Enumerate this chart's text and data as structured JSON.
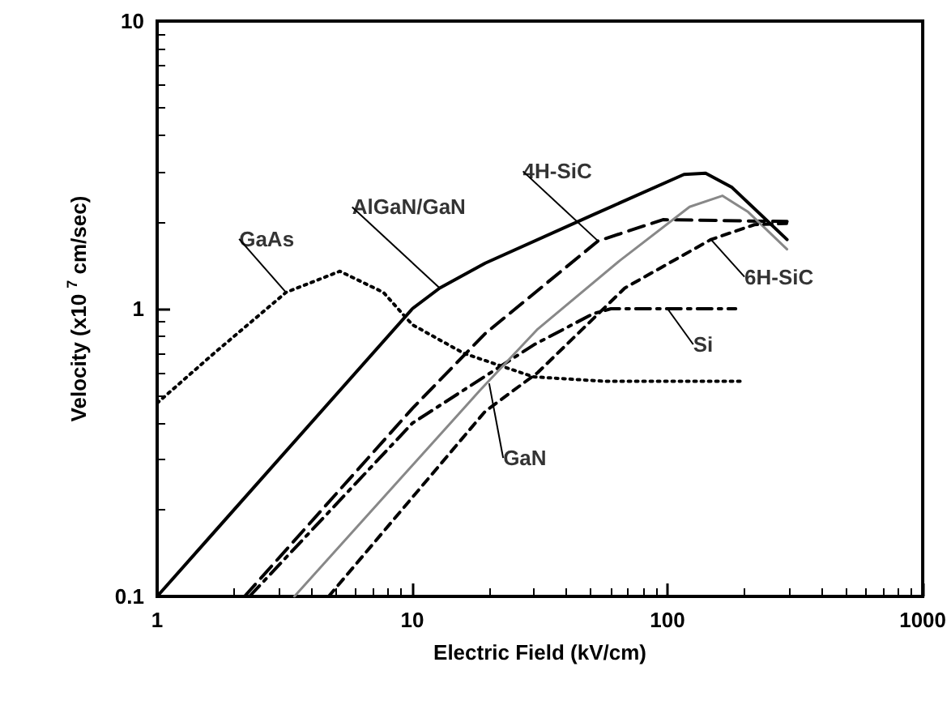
{
  "chart_data": {
    "type": "line",
    "xlabel": "Electric Field (kV/cm)",
    "ylabel": "Velocity (x10 $^{7}$ cm/sec)",
    "log": "xy",
    "grid": false,
    "marker": "none",
    "xlim": [
      1,
      1000
    ],
    "xticks": [
      1,
      10,
      100,
      1000
    ],
    "ylim": [
      0.1,
      10
    ],
    "yticks": [
      0.1,
      1,
      10
    ],
    "series": [
      {
        "color": "#000000",
        "line_style": "solid",
        "x": [
          1,
          10,
          12.8,
          19.3,
          51,
          116,
          141,
          179,
          294
        ],
        "values": [
          0.1,
          1,
          1.18,
          1.44,
          2.12,
          2.93,
          2.96,
          2.64,
          1.74
        ]
      },
      {
        "color": "#000000",
        "line_style": "dotted",
        "x": [
          1,
          1.67,
          3.2,
          5.2,
          7.7,
          10,
          15.9,
          29.8,
          56,
          198
        ],
        "values": [
          0.47,
          0.7,
          1.14,
          1.35,
          1.14,
          0.88,
          0.7,
          0.58,
          0.56,
          0.56
        ]
      },
      {
        "color": "#000000",
        "line_style": "longdash",
        "x": [
          2.2,
          10,
          19.3,
          53.4,
          96,
          294
        ],
        "values": [
          0.1,
          0.45,
          0.82,
          1.72,
          2.04,
          2.01
        ]
      },
      {
        "color": "#000000",
        "line_style": "dashdot",
        "x": [
          2.3,
          10,
          30,
          51,
          60,
          185
        ],
        "values": [
          0.1,
          0.4,
          0.75,
          0.96,
          1.0,
          1.0
        ]
      },
      {
        "color": "#888888",
        "line_style": "solid",
        "x": [
          3.45,
          18.4,
          31,
          65,
          122,
          164,
          207,
          294
        ],
        "values": [
          0.1,
          0.52,
          0.85,
          1.47,
          2.26,
          2.47,
          2.17,
          1.61
        ]
      },
      {
        "color": "#000000",
        "line_style": "dashed",
        "x": [
          4.7,
          19.3,
          31,
          68,
          148,
          219,
          294
        ],
        "values": [
          0.1,
          0.44,
          0.6,
          1.18,
          1.74,
          1.96,
          1.98
        ]
      }
    ],
    "annotations": [
      {
        "text": "GaAs",
        "x": 3.2,
        "y": 1.14
      },
      {
        "text": "AlGaN/GaN",
        "x": 12.8,
        "y": 1.18
      },
      {
        "text": "4H-SiC",
        "x": 53.4,
        "y": 1.72
      },
      {
        "text": "6H-SiC",
        "x": 148,
        "y": 1.74
      },
      {
        "text": "Si",
        "x": 100,
        "y": 1.0
      },
      {
        "text": "GaN",
        "x": 20,
        "y": 0.55
      }
    ]
  }
}
